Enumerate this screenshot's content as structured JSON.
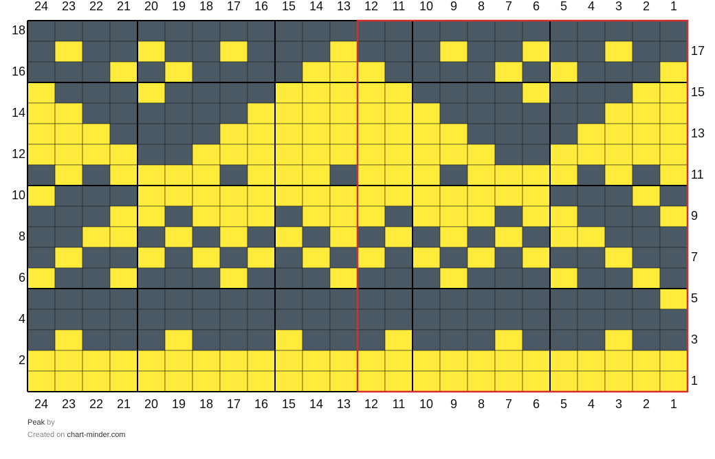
{
  "grid": {
    "columns": [
      24,
      23,
      22,
      21,
      20,
      19,
      18,
      17,
      16,
      15,
      14,
      13,
      12,
      11,
      10,
      9,
      8,
      7,
      6,
      5,
      4,
      3,
      2,
      1
    ],
    "left_row_labels": [
      18,
      16,
      14,
      12,
      10,
      8,
      6,
      4,
      2
    ],
    "right_row_labels": [
      17,
      15,
      13,
      11,
      9,
      7,
      5,
      3,
      1
    ],
    "palette": {
      "Y": "#ffeb3b",
      "D": "#4a5963"
    },
    "rows": [
      "DDDDDDDDDDDDDDDDDDDDDDDD",
      "DYDDYDDYDDDYDDDYDDYDDYDD",
      "DDDYDYDDDDYYYDDDDYDYDDDY",
      "YDDDYDDDDYYYYYDDDDYDDDYY",
      "YYDDDDDDYYYYYYYDDDDDDYYY",
      "YYYDDDDYYYYYYYYYDDDDYYYY",
      "YYYYDDYYYYYYYYYYYDDYYYYY",
      "DYDYYYYDYYYDYYYDYYYYDYDY",
      "YDDDYYYYYYYYYYYYYYYDDDYD",
      "DDDYYDYYYDYYYDYYYDYYDDDY",
      "DDYYDYDYDYDYDYDYDYDYYDDD",
      "DYDDYDYDYDYDYDYDYDYDDYDD",
      "YDDYDDDYDDDYDDDYDDDYDDYD",
      "DDDDDDDDDDDDDDDDDDDDDDDY",
      "DDDDDDDDDDDDDDDDDDDDDDDD",
      "DYDDDYDDDYDDDYDDDYDDDYDD",
      "YYYYYYYYYYYYYYYYYYYYYYYY",
      "YYYYYYYYYYYYYYYYYYYYYYYY"
    ]
  },
  "footer": {
    "title": "Peak",
    "by": "by",
    "created": "Created on",
    "site": "chart-minder.com"
  }
}
